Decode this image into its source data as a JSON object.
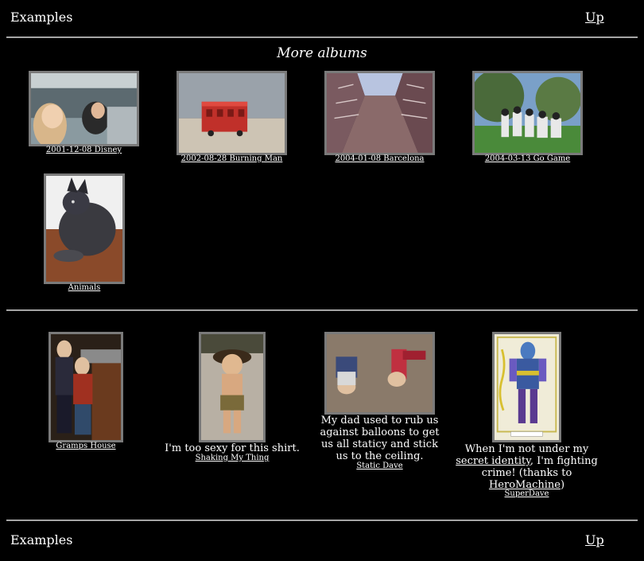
{
  "nav": {
    "title": "Examples",
    "up_label": "Up"
  },
  "more_albums": {
    "heading": "More albums",
    "albums": [
      {
        "label": "2001-12-08 Disney"
      },
      {
        "label": "2002-08-28 Burning Man"
      },
      {
        "label": "2004-01-08 Barcelona"
      },
      {
        "label": "2004-03-13 Go Game"
      },
      {
        "label": "Animals"
      }
    ]
  },
  "photos": [
    {
      "caption": "Gramps House",
      "description": ""
    },
    {
      "caption": "Shaking My Thing",
      "description": "I'm too sexy for this shirt."
    },
    {
      "caption": "Static Dave",
      "description": "My dad used to rub us against balloons to get us all staticy and stick us to the ceiling."
    },
    {
      "caption": "SuperDave",
      "description_before": "When I'm not under my",
      "link1": "secret identity",
      "description_middle": ", I'm fighting crime! (thanks to",
      "link2": "HeroMachine",
      "description_after": ")"
    }
  ],
  "footer_nav": {
    "title": "Examples",
    "up_label": "Up"
  }
}
